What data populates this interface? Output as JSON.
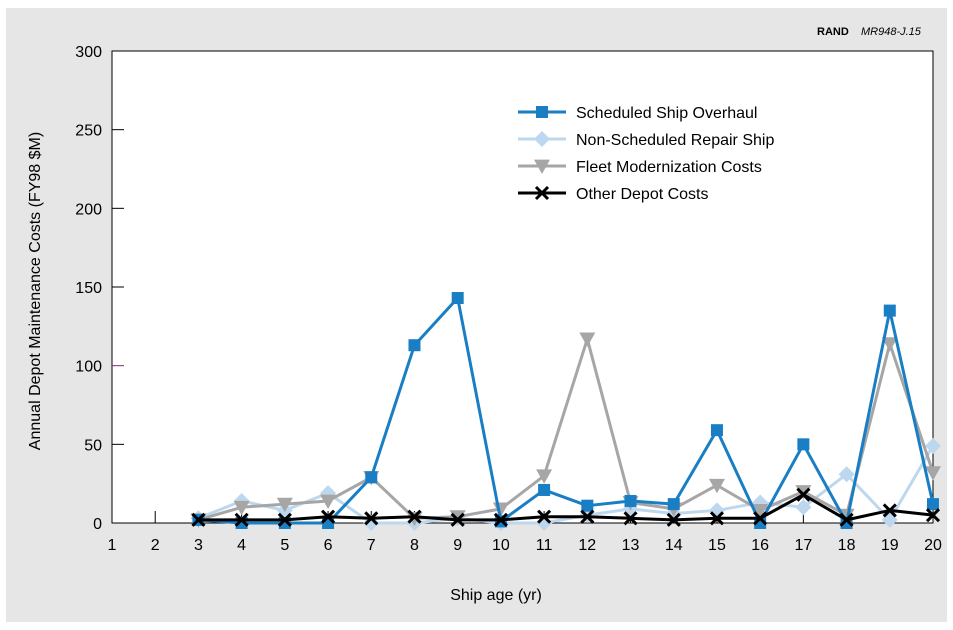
{
  "credit": {
    "org": "RAND",
    "id": "MR948-J.15"
  },
  "chart_data": {
    "type": "line",
    "title": "",
    "xlabel": "Ship age (yr)",
    "ylabel": "Annual Depot Maintenance Costs (FY98 $M)",
    "x": [
      1,
      2,
      3,
      4,
      5,
      6,
      7,
      8,
      9,
      10,
      11,
      12,
      13,
      14,
      15,
      16,
      17,
      18,
      19,
      20
    ],
    "xlim": [
      1,
      20
    ],
    "ylim": [
      0,
      300
    ],
    "yticks": [
      0,
      50,
      100,
      150,
      200,
      250,
      300
    ],
    "grid": false,
    "legend_position": "top-right",
    "series": [
      {
        "name": "Scheduled Ship Overhaul",
        "color": "#1a7ec4",
        "marker": "square",
        "x": [
          3,
          4,
          5,
          6,
          7,
          8,
          9,
          10,
          11,
          12,
          13,
          14,
          15,
          16,
          17,
          18,
          19,
          20
        ],
        "values": [
          2,
          0,
          0,
          0,
          29,
          113,
          143,
          1,
          21,
          11,
          14,
          12,
          59,
          0,
          50,
          0,
          135,
          12
        ]
      },
      {
        "name": "Non-Scheduled Repair Ship",
        "color": "#bdd7ee",
        "marker": "diamond",
        "x": [
          3,
          4,
          5,
          6,
          7,
          8,
          9,
          10,
          11,
          12,
          13,
          14,
          15,
          16,
          17,
          18,
          19,
          20
        ],
        "values": [
          3,
          14,
          8,
          19,
          0,
          0,
          3,
          0,
          0,
          5,
          9,
          6,
          8,
          13,
          10,
          31,
          2,
          49
        ]
      },
      {
        "name": "Fleet Modernization Costs",
        "color": "#a6a6a6",
        "marker": "triangle-down",
        "x": [
          3,
          4,
          5,
          6,
          7,
          8,
          9,
          10,
          11,
          12,
          13,
          14,
          15,
          16,
          17,
          18,
          19,
          20
        ],
        "values": [
          2,
          10,
          12,
          14,
          29,
          3,
          4,
          9,
          30,
          117,
          13,
          9,
          24,
          8,
          20,
          5,
          114,
          32
        ]
      },
      {
        "name": "Other Depot Costs",
        "color": "#000000",
        "marker": "x",
        "x": [
          3,
          4,
          5,
          6,
          7,
          8,
          9,
          10,
          11,
          12,
          13,
          14,
          15,
          16,
          17,
          18,
          19,
          20
        ],
        "values": [
          2,
          2,
          2,
          4,
          3,
          4,
          2,
          2,
          4,
          4,
          3,
          2,
          3,
          3,
          18,
          2,
          8,
          5
        ]
      }
    ]
  }
}
